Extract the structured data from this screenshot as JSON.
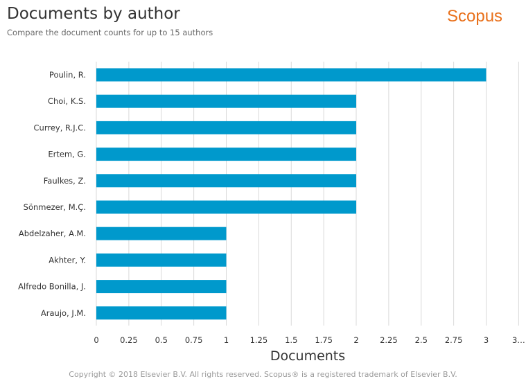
{
  "header": {
    "title": "Documents by author",
    "subtitle": "Compare the document counts for up to 15 authors",
    "logo_text": "Scopus"
  },
  "footer": {
    "copyright": "Copyright © 2018 Elsevier B.V. All rights reserved. Scopus® is a registered trademark of Elsevier B.V."
  },
  "colors": {
    "bar": "#0099cc",
    "grid": "#d9d9d9",
    "logo": "#e9711c"
  },
  "chart_data": {
    "type": "bar",
    "orientation": "horizontal",
    "title": "Documents by author",
    "subtitle": "Compare the document counts for up to 15 authors",
    "xlabel": "Documents",
    "ylabel": "",
    "categories": [
      "Poulin, R.",
      "Choi, K.S.",
      "Currey, R.J.C.",
      "Ertem, G.",
      "Faulkes, Z.",
      "Sönmezer, M.Ç.",
      "Abdelzaher, A.M.",
      "Akhter, Y.",
      "Alfredo Bonilla, J.",
      "Araujo, J.M."
    ],
    "values": [
      3,
      2,
      2,
      2,
      2,
      2,
      1,
      1,
      1,
      1
    ],
    "ticks": [
      "0",
      "0.25",
      "0.5",
      "0.75",
      "1",
      "1.25",
      "1.5",
      "1.75",
      "2",
      "2.25",
      "2.5",
      "2.75",
      "3",
      "3…"
    ],
    "xlim": [
      0,
      3.25
    ],
    "grid": true
  }
}
